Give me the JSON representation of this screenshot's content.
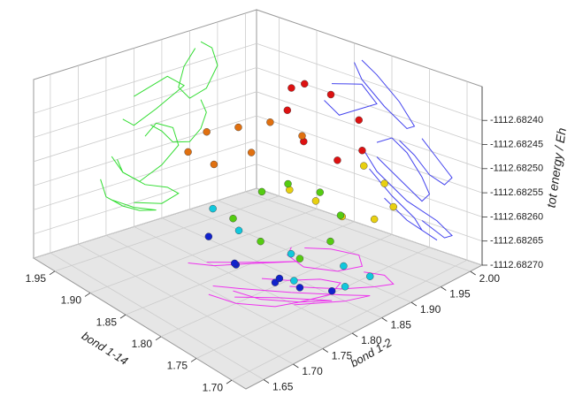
{
  "chart_data": {
    "type": "scatter3d",
    "xlabel": "bond 1-2",
    "ylabel": "bond 1-14",
    "zlabel": "tot energy / Eh",
    "xlim": [
      1.62,
      2.02
    ],
    "ylim": [
      1.68,
      1.98
    ],
    "zlim": [
      -1112.6827,
      -1112.68233
    ],
    "xticks": [
      1.65,
      {
        "value": 1.7,
        "label": "1.70"
      },
      1.75,
      {
        "value": 1.8,
        "label": "1.80"
      },
      1.85,
      {
        "value": 1.9,
        "label": "1.90"
      },
      1.95,
      {
        "value": 2.0,
        "label": "2.00"
      }
    ],
    "yticks": [
      {
        "value": 1.7,
        "label": "1.70"
      },
      1.75,
      {
        "value": 1.8,
        "label": "1.80"
      },
      1.85,
      {
        "value": 1.9,
        "label": "1.90"
      },
      1.95
    ],
    "zticks": [
      {
        "value": -1112.6824,
        "label": "-1112.68240"
      },
      {
        "value": -1112.68245,
        "label": "-1112.68245"
      },
      {
        "value": -1112.6825,
        "label": "-1112.68250"
      },
      {
        "value": -1112.68255,
        "label": "-1112.68255"
      },
      {
        "value": -1112.6826,
        "label": "-1112.68260"
      },
      {
        "value": -1112.68265,
        "label": "-1112.68265"
      },
      {
        "value": -1112.6827,
        "label": "-1112.68270"
      }
    ],
    "grid": true,
    "projection_colors": {
      "left_wall": "#33dd33",
      "right_wall": "#4444ee",
      "floor": "#ee33ee"
    },
    "series": [
      {
        "color": "#dd1111",
        "x": [
          1.92,
          1.94,
          1.95,
          1.93,
          1.9,
          1.88,
          1.89,
          1.91
        ],
        "y": [
          1.84,
          1.82,
          1.79,
          1.77,
          1.78,
          1.81,
          1.84,
          1.85
        ],
        "z": [
          -1112.68236,
          -1112.68238,
          -1112.68242,
          -1112.68246,
          -1112.68247,
          -1112.68244,
          -1112.6824,
          -1112.68237
        ]
      },
      {
        "color": "#e07010",
        "x": [
          1.8,
          1.83,
          1.86,
          1.89,
          1.84,
          1.8,
          1.78
        ],
        "y": [
          1.88,
          1.86,
          1.84,
          1.82,
          1.85,
          1.87,
          1.89
        ],
        "z": [
          -1112.68243,
          -1112.68242,
          -1112.68241,
          -1112.68244,
          -1112.68247,
          -1112.68249,
          -1112.68247
        ]
      },
      {
        "color": "#e8d010",
        "x": [
          1.92,
          1.93,
          1.92,
          1.9,
          1.87,
          1.85,
          1.83
        ],
        "y": [
          1.76,
          1.74,
          1.72,
          1.73,
          1.75,
          1.77,
          1.79
        ],
        "z": [
          -1112.68248,
          -1112.68251,
          -1112.68254,
          -1112.68256,
          -1112.68255,
          -1112.68252,
          -1112.6825
        ]
      },
      {
        "color": "#55cc11",
        "x": [
          1.82,
          1.84,
          1.87,
          1.88,
          1.85,
          1.81,
          1.78,
          1.77
        ],
        "y": [
          1.82,
          1.8,
          1.78,
          1.76,
          1.75,
          1.76,
          1.79,
          1.82
        ],
        "z": [
          -1112.68252,
          -1112.6825,
          -1112.68252,
          -1112.68256,
          -1112.68259,
          -1112.68261,
          -1112.68258,
          -1112.68255
        ]
      },
      {
        "color": "#11c8dd",
        "x": [
          1.76,
          1.78,
          1.82,
          1.86,
          1.88,
          1.85,
          1.8
        ],
        "y": [
          1.84,
          1.82,
          1.78,
          1.74,
          1.72,
          1.73,
          1.76
        ],
        "z": [
          -1112.68254,
          -1112.68258,
          -1112.68262,
          -1112.68264,
          -1112.68266,
          -1112.68267,
          -1112.68265
        ]
      },
      {
        "color": "#1122cc",
        "x": [
          1.74,
          1.75,
          1.78,
          1.81,
          1.84,
          1.8,
          1.76
        ],
        "y": [
          1.83,
          1.8,
          1.77,
          1.76,
          1.74,
          1.78,
          1.81
        ],
        "z": [
          -1112.68258,
          -1112.68262,
          -1112.68265,
          -1112.68267,
          -1112.68268,
          -1112.68266,
          -1112.68263
        ]
      }
    ]
  }
}
